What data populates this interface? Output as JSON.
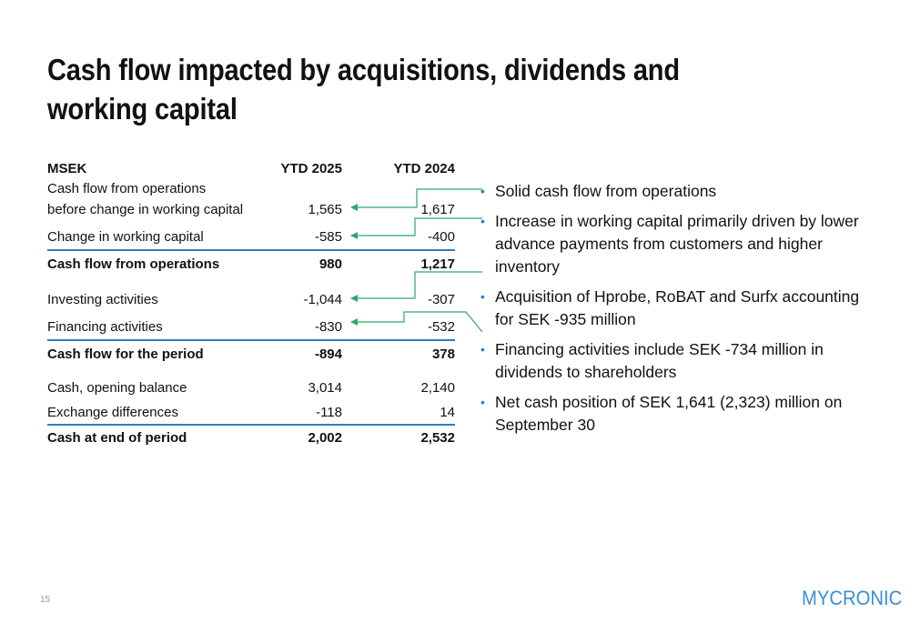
{
  "title": "Cash flow impacted by acquisitions, dividends and working capital",
  "table": {
    "header": {
      "label": "MSEK",
      "col1": "YTD 2025",
      "col2": "YTD 2024"
    },
    "rows": [
      {
        "label": "Cash flow from operations",
        "label2": "before change in working capital",
        "col1": "1,565",
        "col2": "1,617"
      },
      {
        "label": "Change in working capital",
        "col1": "-585",
        "col2": "-400"
      },
      {
        "label": "Cash flow from operations",
        "col1": "980",
        "col2": "1,217"
      },
      {
        "label": "Investing activities",
        "col1": "-1,044",
        "col2": "-307"
      },
      {
        "label": "Financing activities",
        "col1": "-830",
        "col2": "-532"
      },
      {
        "label": "Cash flow for the period",
        "col1": "-894",
        "col2": "378"
      },
      {
        "label": "Cash, opening balance",
        "col1": "3,014",
        "col2": "2,140"
      },
      {
        "label": "Exchange differences",
        "col1": "-118",
        "col2": "14"
      },
      {
        "label": "Cash at end of period",
        "col1": "2,002",
        "col2": "2,532"
      }
    ]
  },
  "bullets": [
    "Solid cash flow from operations",
    "Increase in working capital primarily driven by lower advance payments from customers and higher inventory",
    "Acquisition of Hprobe, RoBAT and Surfx accounting for SEK -935 million",
    "Financing activities include SEK -734 million in dividends to shareholders",
    "Net cash position of SEK 1,641 (2,323) million on September 30"
  ],
  "page_number": "15",
  "logo": "MYCRONIC",
  "colors": {
    "accent": "#2f7dc1",
    "arrow": "#2fa86a"
  }
}
